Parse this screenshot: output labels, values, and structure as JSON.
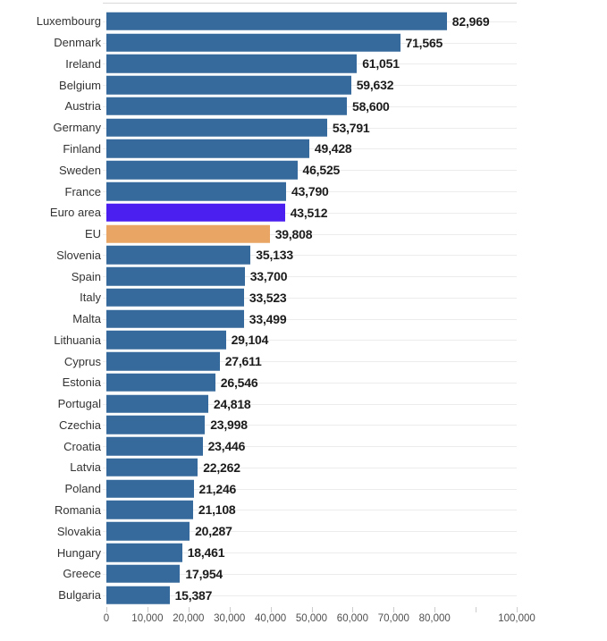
{
  "chart_data": {
    "type": "bar",
    "orientation": "horizontal",
    "title": "",
    "xlabel": "",
    "ylabel": "",
    "xlim": [
      0,
      100000
    ],
    "grid": "light horizontal line per row, short bottom ticks",
    "legend_position": "none",
    "colors": {
      "default": "#36699c",
      "euro_area": "#4a1ff0",
      "eu": "#e8a563"
    },
    "rows": [
      {
        "label": "Luxembourg",
        "value": 82969,
        "display": "82,969",
        "color": "default"
      },
      {
        "label": "Denmark",
        "value": 71565,
        "display": "71,565",
        "color": "default"
      },
      {
        "label": "Ireland",
        "value": 61051,
        "display": "61,051",
        "color": "default"
      },
      {
        "label": "Belgium",
        "value": 59632,
        "display": "59,632",
        "color": "default"
      },
      {
        "label": "Austria",
        "value": 58600,
        "display": "58,600",
        "color": "default"
      },
      {
        "label": "Germany",
        "value": 53791,
        "display": "53,791",
        "color": "default"
      },
      {
        "label": "Finland",
        "value": 49428,
        "display": "49,428",
        "color": "default"
      },
      {
        "label": "Sweden",
        "value": 46525,
        "display": "46,525",
        "color": "default"
      },
      {
        "label": "France",
        "value": 43790,
        "display": "43,790",
        "color": "default"
      },
      {
        "label": "Euro area",
        "value": 43512,
        "display": "43,512",
        "color": "euro_area"
      },
      {
        "label": "EU",
        "value": 39808,
        "display": "39,808",
        "color": "eu"
      },
      {
        "label": "Slovenia",
        "value": 35133,
        "display": "35,133",
        "color": "default"
      },
      {
        "label": "Spain",
        "value": 33700,
        "display": "33,700",
        "color": "default"
      },
      {
        "label": "Italy",
        "value": 33523,
        "display": "33,523",
        "color": "default"
      },
      {
        "label": "Malta",
        "value": 33499,
        "display": "33,499",
        "color": "default"
      },
      {
        "label": "Lithuania",
        "value": 29104,
        "display": "29,104",
        "color": "default"
      },
      {
        "label": "Cyprus",
        "value": 27611,
        "display": "27,611",
        "color": "default"
      },
      {
        "label": "Estonia",
        "value": 26546,
        "display": "26,546",
        "color": "default"
      },
      {
        "label": "Portugal",
        "value": 24818,
        "display": "24,818",
        "color": "default"
      },
      {
        "label": "Czechia",
        "value": 23998,
        "display": "23,998",
        "color": "default"
      },
      {
        "label": "Croatia",
        "value": 23446,
        "display": "23,446",
        "color": "default"
      },
      {
        "label": "Latvia",
        "value": 22262,
        "display": "22,262",
        "color": "default"
      },
      {
        "label": "Poland",
        "value": 21246,
        "display": "21,246",
        "color": "default"
      },
      {
        "label": "Romania",
        "value": 21108,
        "display": "21,108",
        "color": "default"
      },
      {
        "label": "Slovakia",
        "value": 20287,
        "display": "20,287",
        "color": "default"
      },
      {
        "label": "Hungary",
        "value": 18461,
        "display": "18,461",
        "color": "default"
      },
      {
        "label": "Greece",
        "value": 17954,
        "display": "17,954",
        "color": "default"
      },
      {
        "label": "Bulgaria",
        "value": 15387,
        "display": "15,387",
        "color": "default"
      }
    ],
    "x_ticks": [
      {
        "value": 0,
        "label": "0"
      },
      {
        "value": 10000,
        "label": "10,000"
      },
      {
        "value": 20000,
        "label": "20,000"
      },
      {
        "value": 30000,
        "label": "30,000"
      },
      {
        "value": 40000,
        "label": "40,000"
      },
      {
        "value": 50000,
        "label": "50,000"
      },
      {
        "value": 60000,
        "label": "60,000"
      },
      {
        "value": 70000,
        "label": "70,000"
      },
      {
        "value": 80000,
        "label": "80,000"
      },
      {
        "value": 90000,
        "label": ""
      },
      {
        "value": 100000,
        "label": "100,000"
      }
    ]
  }
}
